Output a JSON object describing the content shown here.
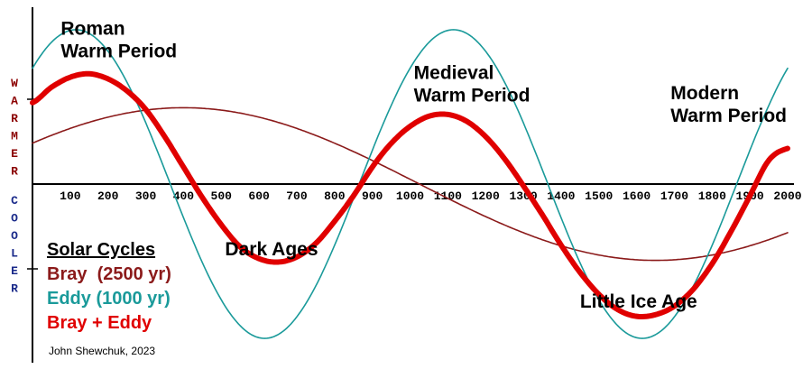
{
  "chart_data": {
    "type": "line",
    "x_ticks": [
      "100",
      "200",
      "300",
      "400",
      "500",
      "600",
      "700",
      "800",
      "900",
      "1000",
      "1100",
      "1200",
      "1300",
      "1400",
      "1500",
      "1600",
      "1700",
      "1800",
      "1900",
      "2000"
    ],
    "xlim": [
      0,
      2000
    ],
    "ylim": [
      -1,
      1
    ],
    "side_label_top": [
      "W",
      "A",
      "R",
      "M",
      "E",
      "R"
    ],
    "side_label_bottom": [
      "C",
      "O",
      "O",
      "L",
      "E",
      "R"
    ],
    "annotations": [
      {
        "lines": [
          "Roman",
          "Warm Period"
        ],
        "x": 75,
        "y": 0.88
      },
      {
        "lines": [
          "Medieval",
          "Warm Period"
        ],
        "x": 1010,
        "y": 0.62
      },
      {
        "lines": [
          "Modern",
          "Warm Period"
        ],
        "x": 1690,
        "y": 0.5
      },
      {
        "lines": [
          "Dark Ages"
        ],
        "x": 510,
        "y": -0.42
      },
      {
        "lines": [
          "Little Ice Age"
        ],
        "x": 1450,
        "y": -0.73
      }
    ],
    "legend": {
      "title": "Solar Cycles",
      "entries": [
        {
          "label": "Bray  (2500 yr)",
          "color": "#8b1a1a"
        },
        {
          "label": "Eddy (1000 yr)",
          "color": "#1a9a9a"
        },
        {
          "label": "Bray + Eddy",
          "color": "#e00000"
        }
      ]
    },
    "series": [
      {
        "name": "Bray  (2500 yr)",
        "color": "#8b1a1a",
        "period": 2500,
        "amplitude": 0.45,
        "peak_x": 400,
        "offset": 0.0
      },
      {
        "name": "Eddy (1000 yr)",
        "color": "#1a9a9a",
        "period": 1000,
        "amplitude": 0.91,
        "peak_x": 115,
        "offset": 0.0
      },
      {
        "name": "Bray + Eddy",
        "color": "#e00000",
        "period_note": "sum",
        "points": [
          [
            0,
            0.48
          ],
          [
            50,
            0.57
          ],
          [
            100,
            0.63
          ],
          [
            150,
            0.65
          ],
          [
            200,
            0.62
          ],
          [
            250,
            0.55
          ],
          [
            300,
            0.44
          ],
          [
            350,
            0.28
          ],
          [
            400,
            0.1
          ],
          [
            450,
            -0.08
          ],
          [
            500,
            -0.24
          ],
          [
            550,
            -0.37
          ],
          [
            600,
            -0.44
          ],
          [
            650,
            -0.46
          ],
          [
            700,
            -0.43
          ],
          [
            750,
            -0.35
          ],
          [
            800,
            -0.22
          ],
          [
            850,
            -0.07
          ],
          [
            900,
            0.1
          ],
          [
            950,
            0.24
          ],
          [
            1000,
            0.34
          ],
          [
            1050,
            0.4
          ],
          [
            1100,
            0.41
          ],
          [
            1150,
            0.37
          ],
          [
            1200,
            0.28
          ],
          [
            1250,
            0.15
          ],
          [
            1300,
            -0.01
          ],
          [
            1350,
            -0.18
          ],
          [
            1400,
            -0.36
          ],
          [
            1450,
            -0.52
          ],
          [
            1500,
            -0.65
          ],
          [
            1550,
            -0.74
          ],
          [
            1600,
            -0.78
          ],
          [
            1650,
            -0.77
          ],
          [
            1700,
            -0.72
          ],
          [
            1750,
            -0.62
          ],
          [
            1800,
            -0.47
          ],
          [
            1850,
            -0.28
          ],
          [
            1900,
            -0.07
          ],
          [
            1950,
            0.14
          ],
          [
            2000,
            0.21
          ]
        ]
      }
    ],
    "credit": "John Shewchuk, 2023"
  }
}
